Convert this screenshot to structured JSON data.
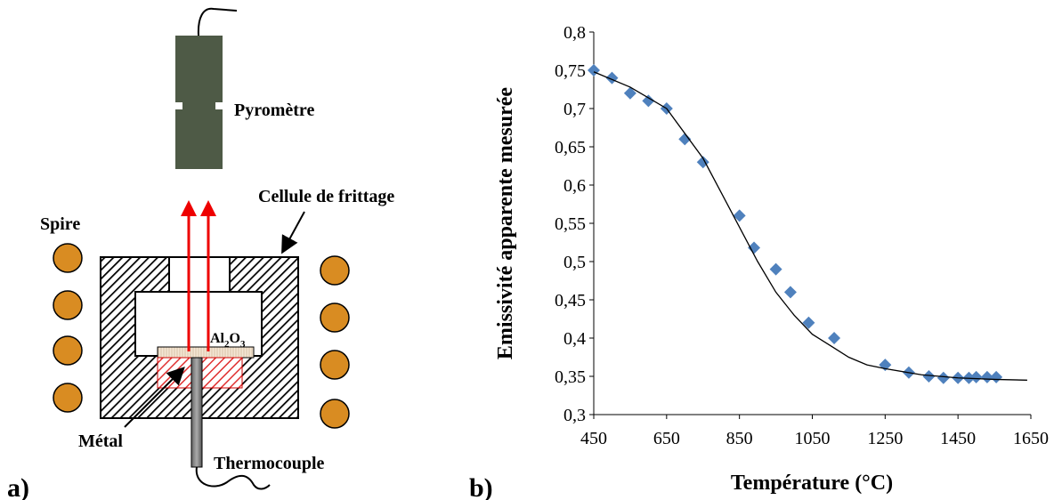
{
  "diagram": {
    "panel_label": "a)",
    "pyrometer": "Pyromètre",
    "cell": "Cellule de frittage",
    "coil": "Spire",
    "plate": [
      "Al",
      "2",
      "O",
      "3"
    ],
    "metal": "Métal",
    "thermocouple": "Thermocouple"
  },
  "chart_data": {
    "type": "scatter",
    "panel_label": "b)",
    "x_label": "Température (°C)",
    "y_label": "Emissivité apparente mesurée",
    "xlim": [
      450,
      1650
    ],
    "xticks": [
      450,
      650,
      850,
      1050,
      1250,
      1450,
      1650
    ],
    "ylim": [
      0.3,
      0.8
    ],
    "yticks": [
      {
        "value": 0.3,
        "label": "0,3"
      },
      {
        "value": 0.35,
        "label": "0,35"
      },
      {
        "value": 0.4,
        "label": "0,4"
      },
      {
        "value": 0.45,
        "label": "0,45"
      },
      {
        "value": 0.5,
        "label": "0,5"
      },
      {
        "value": 0.55,
        "label": "0,55"
      },
      {
        "value": 0.6,
        "label": "0,6"
      },
      {
        "value": 0.65,
        "label": "0,65"
      },
      {
        "value": 0.7,
        "label": "0,7"
      },
      {
        "value": 0.75,
        "label": "0,75"
      },
      {
        "value": 0.8,
        "label": "0,8"
      }
    ],
    "series": [
      {
        "style": "marker",
        "color": "#4f81bd",
        "x": [
          450,
          500,
          550,
          600,
          650,
          700,
          750,
          850,
          890,
          950,
          990,
          1040,
          1110,
          1250,
          1315,
          1370,
          1410,
          1450,
          1480,
          1500,
          1530,
          1555
        ],
        "values": [
          0.75,
          0.74,
          0.72,
          0.71,
          0.7,
          0.66,
          0.63,
          0.56,
          0.518,
          0.49,
          0.46,
          0.42,
          0.4,
          0.365,
          0.355,
          0.35,
          0.348,
          0.348,
          0.348,
          0.349,
          0.349,
          0.349
        ]
      },
      {
        "style": "line",
        "color": "#000000",
        "x": [
          450,
          550,
          650,
          750,
          800,
          850,
          900,
          950,
          1000,
          1050,
          1100,
          1150,
          1200,
          1250,
          1350,
          1450,
          1550,
          1640
        ],
        "values": [
          0.748,
          0.728,
          0.7,
          0.635,
          0.59,
          0.545,
          0.5,
          0.46,
          0.43,
          0.405,
          0.39,
          0.375,
          0.365,
          0.36,
          0.352,
          0.348,
          0.346,
          0.345
        ]
      }
    ]
  }
}
